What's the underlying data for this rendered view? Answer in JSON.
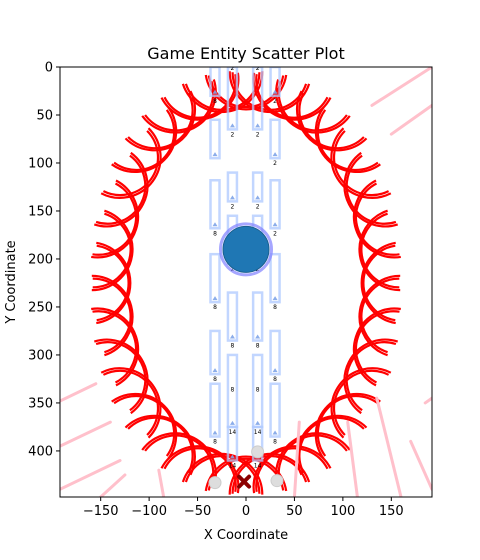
{
  "chart_data": {
    "type": "scatter",
    "title": "Game Entity Scatter Plot",
    "xlabel": "X Coordinate",
    "ylabel": "Y Coordinate",
    "xlim": [
      -192,
      192
    ],
    "ylim": [
      448,
      0
    ],
    "y_inverted": true,
    "grid": false,
    "x_ticks": [
      -150,
      -100,
      -50,
      0,
      50,
      100,
      150
    ],
    "y_ticks": [
      0,
      50,
      100,
      150,
      200,
      250,
      300,
      350,
      400
    ],
    "colors": {
      "arcs": "#ff0000",
      "pink_lines": "#ffc0cb",
      "columns": "#aec8ff",
      "player": "#1f77b4",
      "player_edge": "#8080ff",
      "x_marker": "#8b0000",
      "ghost": "#dddddd"
    },
    "player": {
      "x": 0,
      "y": 190
    },
    "x_marker": {
      "x": -2,
      "y": 432
    },
    "ghost_circles": [
      {
        "x": -32,
        "y": 433
      },
      {
        "x": 12,
        "y": 401
      },
      {
        "x": 32,
        "y": 431
      }
    ],
    "columns": [
      {
        "x": -32,
        "y_top": 0,
        "y_bottom": 30,
        "label": "8"
      },
      {
        "x": -14,
        "y_top": 0,
        "y_bottom": 65,
        "label": "2"
      },
      {
        "x": 12,
        "y_top": 0,
        "y_bottom": 65,
        "label": "2"
      },
      {
        "x": 30,
        "y_top": 0,
        "y_bottom": 30,
        "label": "2"
      },
      {
        "x": -32,
        "y_top": 55,
        "y_bottom": 95,
        "label": ""
      },
      {
        "x": 30,
        "y_top": 55,
        "y_bottom": 95,
        "label": "2"
      },
      {
        "x": -32,
        "y_top": 118,
        "y_bottom": 168,
        "label": "8"
      },
      {
        "x": -14,
        "y_top": 110,
        "y_bottom": 140,
        "label": "2"
      },
      {
        "x": 12,
        "y_top": 110,
        "y_bottom": 140,
        "label": "2"
      },
      {
        "x": 30,
        "y_top": 118,
        "y_bottom": 168,
        "label": "2"
      },
      {
        "x": -32,
        "y_top": 195,
        "y_bottom": 245,
        "label": "8"
      },
      {
        "x": -14,
        "y_top": 155,
        "y_bottom": 205,
        "label": "2"
      },
      {
        "x": 12,
        "y_top": 155,
        "y_bottom": 205,
        "label": "2"
      },
      {
        "x": 30,
        "y_top": 195,
        "y_bottom": 245,
        "label": "8"
      },
      {
        "x": -14,
        "y_top": 235,
        "y_bottom": 285,
        "label": "8"
      },
      {
        "x": 12,
        "y_top": 235,
        "y_bottom": 285,
        "label": "8"
      },
      {
        "x": -32,
        "y_top": 275,
        "y_bottom": 320,
        "label": "8"
      },
      {
        "x": 30,
        "y_top": 275,
        "y_bottom": 320,
        "label": "8"
      },
      {
        "x": -14,
        "y_top": 300,
        "y_bottom": 375,
        "label": "14"
      },
      {
        "x": 12,
        "y_top": 300,
        "y_bottom": 375,
        "label": "14"
      },
      {
        "x": -32,
        "y_top": 330,
        "y_bottom": 385,
        "label": "8"
      },
      {
        "x": 30,
        "y_top": 330,
        "y_bottom": 385,
        "label": "8"
      },
      {
        "x": -14,
        "y_top": 375,
        "y_bottom": 410,
        "label": "14"
      },
      {
        "x": 12,
        "y_top": 375,
        "y_bottom": 410,
        "label": "14"
      }
    ],
    "extra_labels": [
      {
        "x": -14,
        "y": 0,
        "text": "2"
      },
      {
        "x": 12,
        "y": 0,
        "text": "2"
      },
      {
        "x": -14,
        "y": 335,
        "text": "8"
      },
      {
        "x": 12,
        "y": 335,
        "text": "8"
      }
    ],
    "pink_lines": [
      {
        "x1": -192,
        "y1": 348,
        "x2": -155,
        "y2": 330
      },
      {
        "x1": -192,
        "y1": 395,
        "x2": -140,
        "y2": 370
      },
      {
        "x1": -192,
        "y1": 440,
        "x2": -130,
        "y2": 410
      },
      {
        "x1": -150,
        "y1": 448,
        "x2": -125,
        "y2": 425
      },
      {
        "x1": 130,
        "y1": 40,
        "x2": 192,
        "y2": 0
      },
      {
        "x1": 150,
        "y1": 70,
        "x2": 192,
        "y2": 40
      },
      {
        "x1": 185,
        "y1": 350,
        "x2": 192,
        "y2": 345
      },
      {
        "x1": 135,
        "y1": 345,
        "x2": 160,
        "y2": 448
      },
      {
        "x1": 105,
        "y1": 370,
        "x2": 115,
        "y2": 448
      },
      {
        "x1": 55,
        "y1": 370,
        "x2": 50,
        "y2": 448
      },
      {
        "x1": 170,
        "y1": 390,
        "x2": 192,
        "y2": 440
      },
      {
        "x1": -90,
        "y1": 420,
        "x2": -85,
        "y2": 448
      }
    ],
    "arc_ring": {
      "center": {
        "x": 0,
        "y": 225
      },
      "radius_x": 148,
      "radius_y": 210,
      "count": 40,
      "arc_radius": 42
    }
  }
}
